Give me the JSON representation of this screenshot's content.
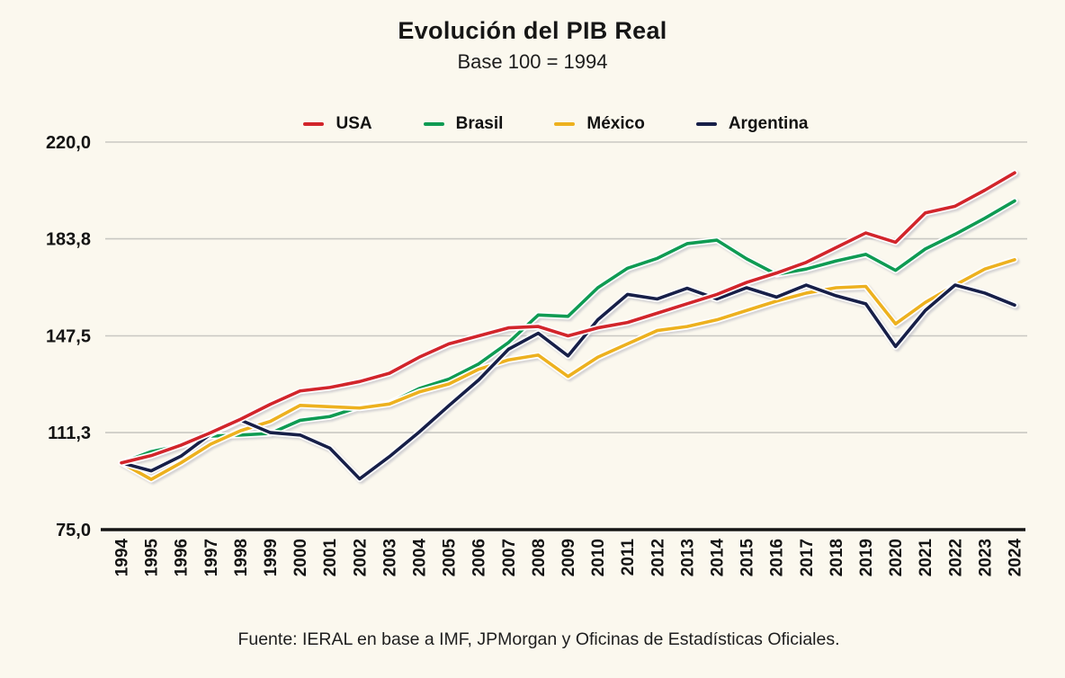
{
  "header": {
    "title": "Evolución del PIB Real",
    "subtitle": "Base 100 = 1994"
  },
  "footer": {
    "source": "Fuente: IERAL en base a IMF, JPMorgan y Oficinas de Estadísticas Oficiales."
  },
  "chart_data": {
    "type": "line",
    "title": "Evolución del PIB Real",
    "subtitle": "Base 100 = 1994",
    "xlabel": "",
    "ylabel": "",
    "ylim": [
      75.0,
      220.0
    ],
    "grid": true,
    "legend_position": "top",
    "colors": {
      "background": "#fbf8ee",
      "grid": "#c9c8c2",
      "axis": "#141414",
      "text": "#141414"
    },
    "y_ticks": [
      {
        "value": 220.0,
        "label": "220,0"
      },
      {
        "value": 183.8,
        "label": "183,8"
      },
      {
        "value": 147.5,
        "label": "147,5"
      },
      {
        "value": 111.3,
        "label": "111,3"
      },
      {
        "value": 75.0,
        "label": "75,0"
      }
    ],
    "x": [
      1994,
      1995,
      1996,
      1997,
      1998,
      1999,
      2000,
      2001,
      2002,
      2003,
      2004,
      2005,
      2006,
      2007,
      2008,
      2009,
      2010,
      2011,
      2012,
      2013,
      2014,
      2015,
      2016,
      2017,
      2018,
      2019,
      2020,
      2021,
      2022,
      2023,
      2024
    ],
    "series": [
      {
        "name": "USA",
        "color": "#d2252b",
        "values": [
          100.0,
          102.7,
          106.6,
          111.3,
          116.3,
          121.9,
          126.9,
          128.2,
          130.4,
          133.5,
          139.5,
          144.5,
          147.5,
          150.5,
          151.0,
          147.5,
          150.5,
          152.5,
          156.0,
          159.5,
          163.0,
          167.5,
          171.0,
          175.0,
          180.5,
          186.0,
          182.5,
          193.5,
          196.0,
          202.0,
          208.5
        ]
      },
      {
        "name": "Brasil",
        "color": "#0f9b53",
        "values": [
          100.0,
          104.2,
          106.5,
          110.0,
          110.4,
          111.0,
          115.9,
          117.3,
          120.9,
          122.3,
          127.8,
          131.3,
          137.0,
          145.0,
          155.3,
          154.8,
          165.5,
          172.8,
          176.5,
          182.0,
          183.3,
          176.3,
          170.5,
          172.5,
          175.5,
          178.0,
          172.0,
          180.0,
          185.5,
          191.5,
          198.0
        ]
      },
      {
        "name": "México",
        "color": "#edb11f",
        "values": [
          100.0,
          93.8,
          100.0,
          107.0,
          112.0,
          115.5,
          121.5,
          121.0,
          120.5,
          122.0,
          126.5,
          129.5,
          135.0,
          138.5,
          140.3,
          132.3,
          139.5,
          144.5,
          149.5,
          151.0,
          153.5,
          157.0,
          160.5,
          163.5,
          165.5,
          166.0,
          152.0,
          160.0,
          166.5,
          172.5,
          176.0
        ]
      },
      {
        "name": "Argentina",
        "color": "#171f48",
        "values": [
          100.0,
          97.0,
          102.5,
          110.8,
          116.0,
          111.3,
          110.4,
          105.5,
          94.0,
          102.3,
          111.5,
          121.4,
          131.0,
          142.5,
          148.5,
          140.0,
          153.5,
          163.0,
          161.3,
          165.3,
          161.3,
          165.5,
          162.0,
          166.5,
          162.5,
          159.5,
          143.5,
          157.0,
          166.5,
          163.5,
          159.0
        ]
      }
    ]
  }
}
